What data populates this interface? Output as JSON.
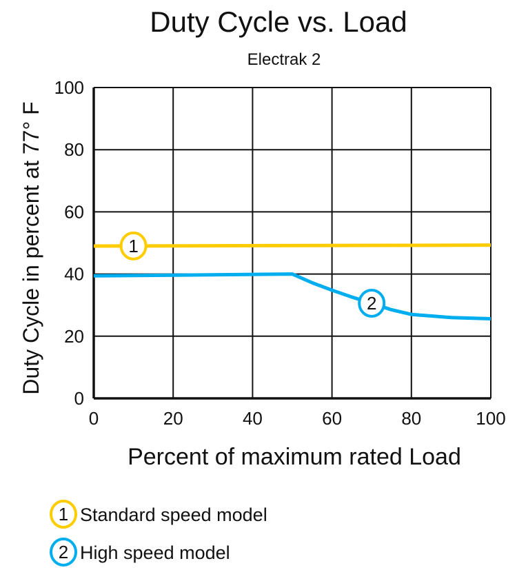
{
  "chart_data": {
    "type": "line",
    "title": "Duty Cycle vs. Load",
    "subtitle": "Electrak 2",
    "xlabel": "Percent of maximum rated Load",
    "ylabel": "Duty Cycle in percent at 77° F",
    "xlim": [
      0,
      100
    ],
    "ylim": [
      0,
      100
    ],
    "xticks": [
      0,
      20,
      40,
      60,
      80,
      100
    ],
    "yticks": [
      0,
      20,
      40,
      60,
      80,
      100
    ],
    "grid": true,
    "legend_placement": "bottom-left",
    "series": [
      {
        "name": "Standard speed model",
        "marker_label": "1",
        "color": "#FFCC00",
        "x": [
          0,
          100
        ],
        "y": [
          49,
          49.3
        ],
        "marker_at_x": 10
      },
      {
        "name": "High speed model",
        "marker_label": "2",
        "color": "#00AEEF",
        "x": [
          0,
          50,
          55,
          60,
          65,
          70,
          75,
          80,
          90,
          100
        ],
        "y": [
          39.4,
          40,
          37.2,
          34.8,
          32.6,
          30.6,
          28.5,
          27,
          26,
          25.6
        ],
        "marker_at_x": 70
      }
    ]
  }
}
